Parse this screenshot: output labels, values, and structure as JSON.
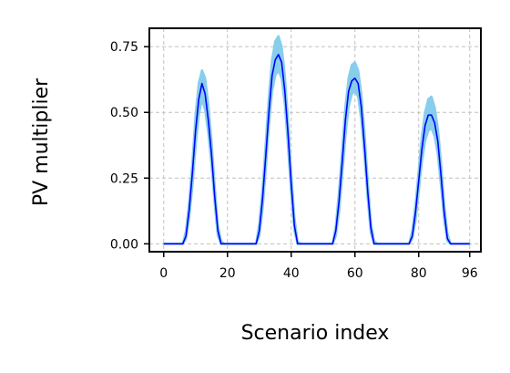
{
  "chart_data": {
    "type": "line",
    "title": "",
    "xlabel": "Scenario index",
    "ylabel": "PV multiplier",
    "xlim": [
      -4.5,
      99.5
    ],
    "ylim": [
      -0.03,
      0.82
    ],
    "x_ticks": [
      0,
      20,
      40,
      60,
      80,
      96
    ],
    "x_tick_labels": [
      "0",
      "20",
      "40",
      "60",
      "80",
      "96"
    ],
    "y_ticks": [
      0.0,
      0.25,
      0.5,
      0.75
    ],
    "y_tick_labels": [
      "0.00",
      "0.25",
      "0.50",
      "0.75"
    ],
    "grid": true,
    "legend": "none",
    "colors": {
      "mean_line": "#0000ff",
      "spread_band": "#87ceeb",
      "grid": "#c0c0c0",
      "frame": "#000000"
    },
    "series": [
      {
        "style": "band",
        "x": [
          0,
          1,
          2,
          3,
          4,
          5,
          6,
          7,
          8,
          9,
          10,
          11,
          12,
          13,
          14,
          15,
          16,
          17,
          18,
          19,
          20,
          21,
          22,
          23,
          24,
          25,
          26,
          27,
          28,
          29,
          30,
          31,
          32,
          33,
          34,
          35,
          36,
          37,
          38,
          39,
          40,
          41,
          42,
          43,
          44,
          45,
          46,
          47,
          48,
          49,
          50,
          51,
          52,
          53,
          54,
          55,
          56,
          57,
          58,
          59,
          60,
          61,
          62,
          63,
          64,
          65,
          66,
          67,
          68,
          69,
          70,
          71,
          72,
          73,
          74,
          75,
          76,
          77,
          78,
          79,
          80,
          81,
          82,
          83,
          84,
          85,
          86,
          87,
          88,
          89,
          90,
          91,
          92,
          93,
          94,
          95,
          96
        ],
        "low": [
          0,
          0,
          0,
          0,
          0,
          0,
          0,
          0.02,
          0.1,
          0.22,
          0.37,
          0.49,
          0.55,
          0.51,
          0.42,
          0.3,
          0.15,
          0.03,
          0,
          0,
          0,
          0,
          0,
          0,
          0,
          0,
          0,
          0,
          0,
          0,
          0.03,
          0.13,
          0.28,
          0.45,
          0.58,
          0.64,
          0.66,
          0.63,
          0.53,
          0.37,
          0.19,
          0.05,
          0,
          0,
          0,
          0,
          0,
          0,
          0,
          0,
          0,
          0,
          0,
          0,
          0.03,
          0.12,
          0.26,
          0.41,
          0.52,
          0.57,
          0.58,
          0.56,
          0.47,
          0.33,
          0.17,
          0.04,
          0,
          0,
          0,
          0,
          0,
          0,
          0,
          0,
          0,
          0,
          0,
          0,
          0.02,
          0.09,
          0.2,
          0.31,
          0.39,
          0.43,
          0.44,
          0.41,
          0.34,
          0.22,
          0.09,
          0.01,
          0,
          0,
          0,
          0,
          0,
          0,
          0
        ],
        "high": [
          0,
          0,
          0,
          0,
          0,
          0,
          0,
          0.05,
          0.16,
          0.31,
          0.49,
          0.61,
          0.66,
          0.63,
          0.53,
          0.39,
          0.22,
          0.07,
          0.01,
          0,
          0,
          0,
          0,
          0,
          0,
          0,
          0,
          0,
          0,
          0,
          0.08,
          0.21,
          0.38,
          0.56,
          0.7,
          0.77,
          0.79,
          0.75,
          0.64,
          0.47,
          0.27,
          0.1,
          0.01,
          0,
          0,
          0,
          0,
          0,
          0,
          0,
          0,
          0,
          0,
          0,
          0.07,
          0.2,
          0.36,
          0.52,
          0.63,
          0.68,
          0.69,
          0.66,
          0.57,
          0.42,
          0.24,
          0.08,
          0.01,
          0,
          0,
          0,
          0,
          0,
          0,
          0,
          0,
          0,
          0,
          0,
          0.05,
          0.15,
          0.28,
          0.41,
          0.5,
          0.55,
          0.56,
          0.52,
          0.44,
          0.31,
          0.15,
          0.04,
          0,
          0,
          0,
          0,
          0,
          0,
          0
        ]
      },
      {
        "style": "line",
        "x": [
          0,
          1,
          2,
          3,
          4,
          5,
          6,
          7,
          8,
          9,
          10,
          11,
          12,
          13,
          14,
          15,
          16,
          17,
          18,
          19,
          20,
          21,
          22,
          23,
          24,
          25,
          26,
          27,
          28,
          29,
          30,
          31,
          32,
          33,
          34,
          35,
          36,
          37,
          38,
          39,
          40,
          41,
          42,
          43,
          44,
          45,
          46,
          47,
          48,
          49,
          50,
          51,
          52,
          53,
          54,
          55,
          56,
          57,
          58,
          59,
          60,
          61,
          62,
          63,
          64,
          65,
          66,
          67,
          68,
          69,
          70,
          71,
          72,
          73,
          74,
          75,
          76,
          77,
          78,
          79,
          80,
          81,
          82,
          83,
          84,
          85,
          86,
          87,
          88,
          89,
          90,
          91,
          92,
          93,
          94,
          95,
          96
        ],
        "values": [
          0,
          0,
          0,
          0,
          0,
          0,
          0,
          0.03,
          0.13,
          0.27,
          0.43,
          0.55,
          0.61,
          0.57,
          0.47,
          0.34,
          0.18,
          0.05,
          0,
          0,
          0,
          0,
          0,
          0,
          0,
          0,
          0,
          0,
          0,
          0,
          0.05,
          0.17,
          0.33,
          0.5,
          0.64,
          0.7,
          0.72,
          0.69,
          0.58,
          0.42,
          0.23,
          0.07,
          0,
          0,
          0,
          0,
          0,
          0,
          0,
          0,
          0,
          0,
          0,
          0,
          0.05,
          0.16,
          0.31,
          0.47,
          0.58,
          0.62,
          0.63,
          0.61,
          0.52,
          0.37,
          0.2,
          0.06,
          0,
          0,
          0,
          0,
          0,
          0,
          0,
          0,
          0,
          0,
          0,
          0,
          0.03,
          0.12,
          0.24,
          0.36,
          0.45,
          0.49,
          0.49,
          0.46,
          0.39,
          0.26,
          0.12,
          0.02,
          0,
          0,
          0,
          0,
          0,
          0,
          0
        ]
      }
    ]
  }
}
